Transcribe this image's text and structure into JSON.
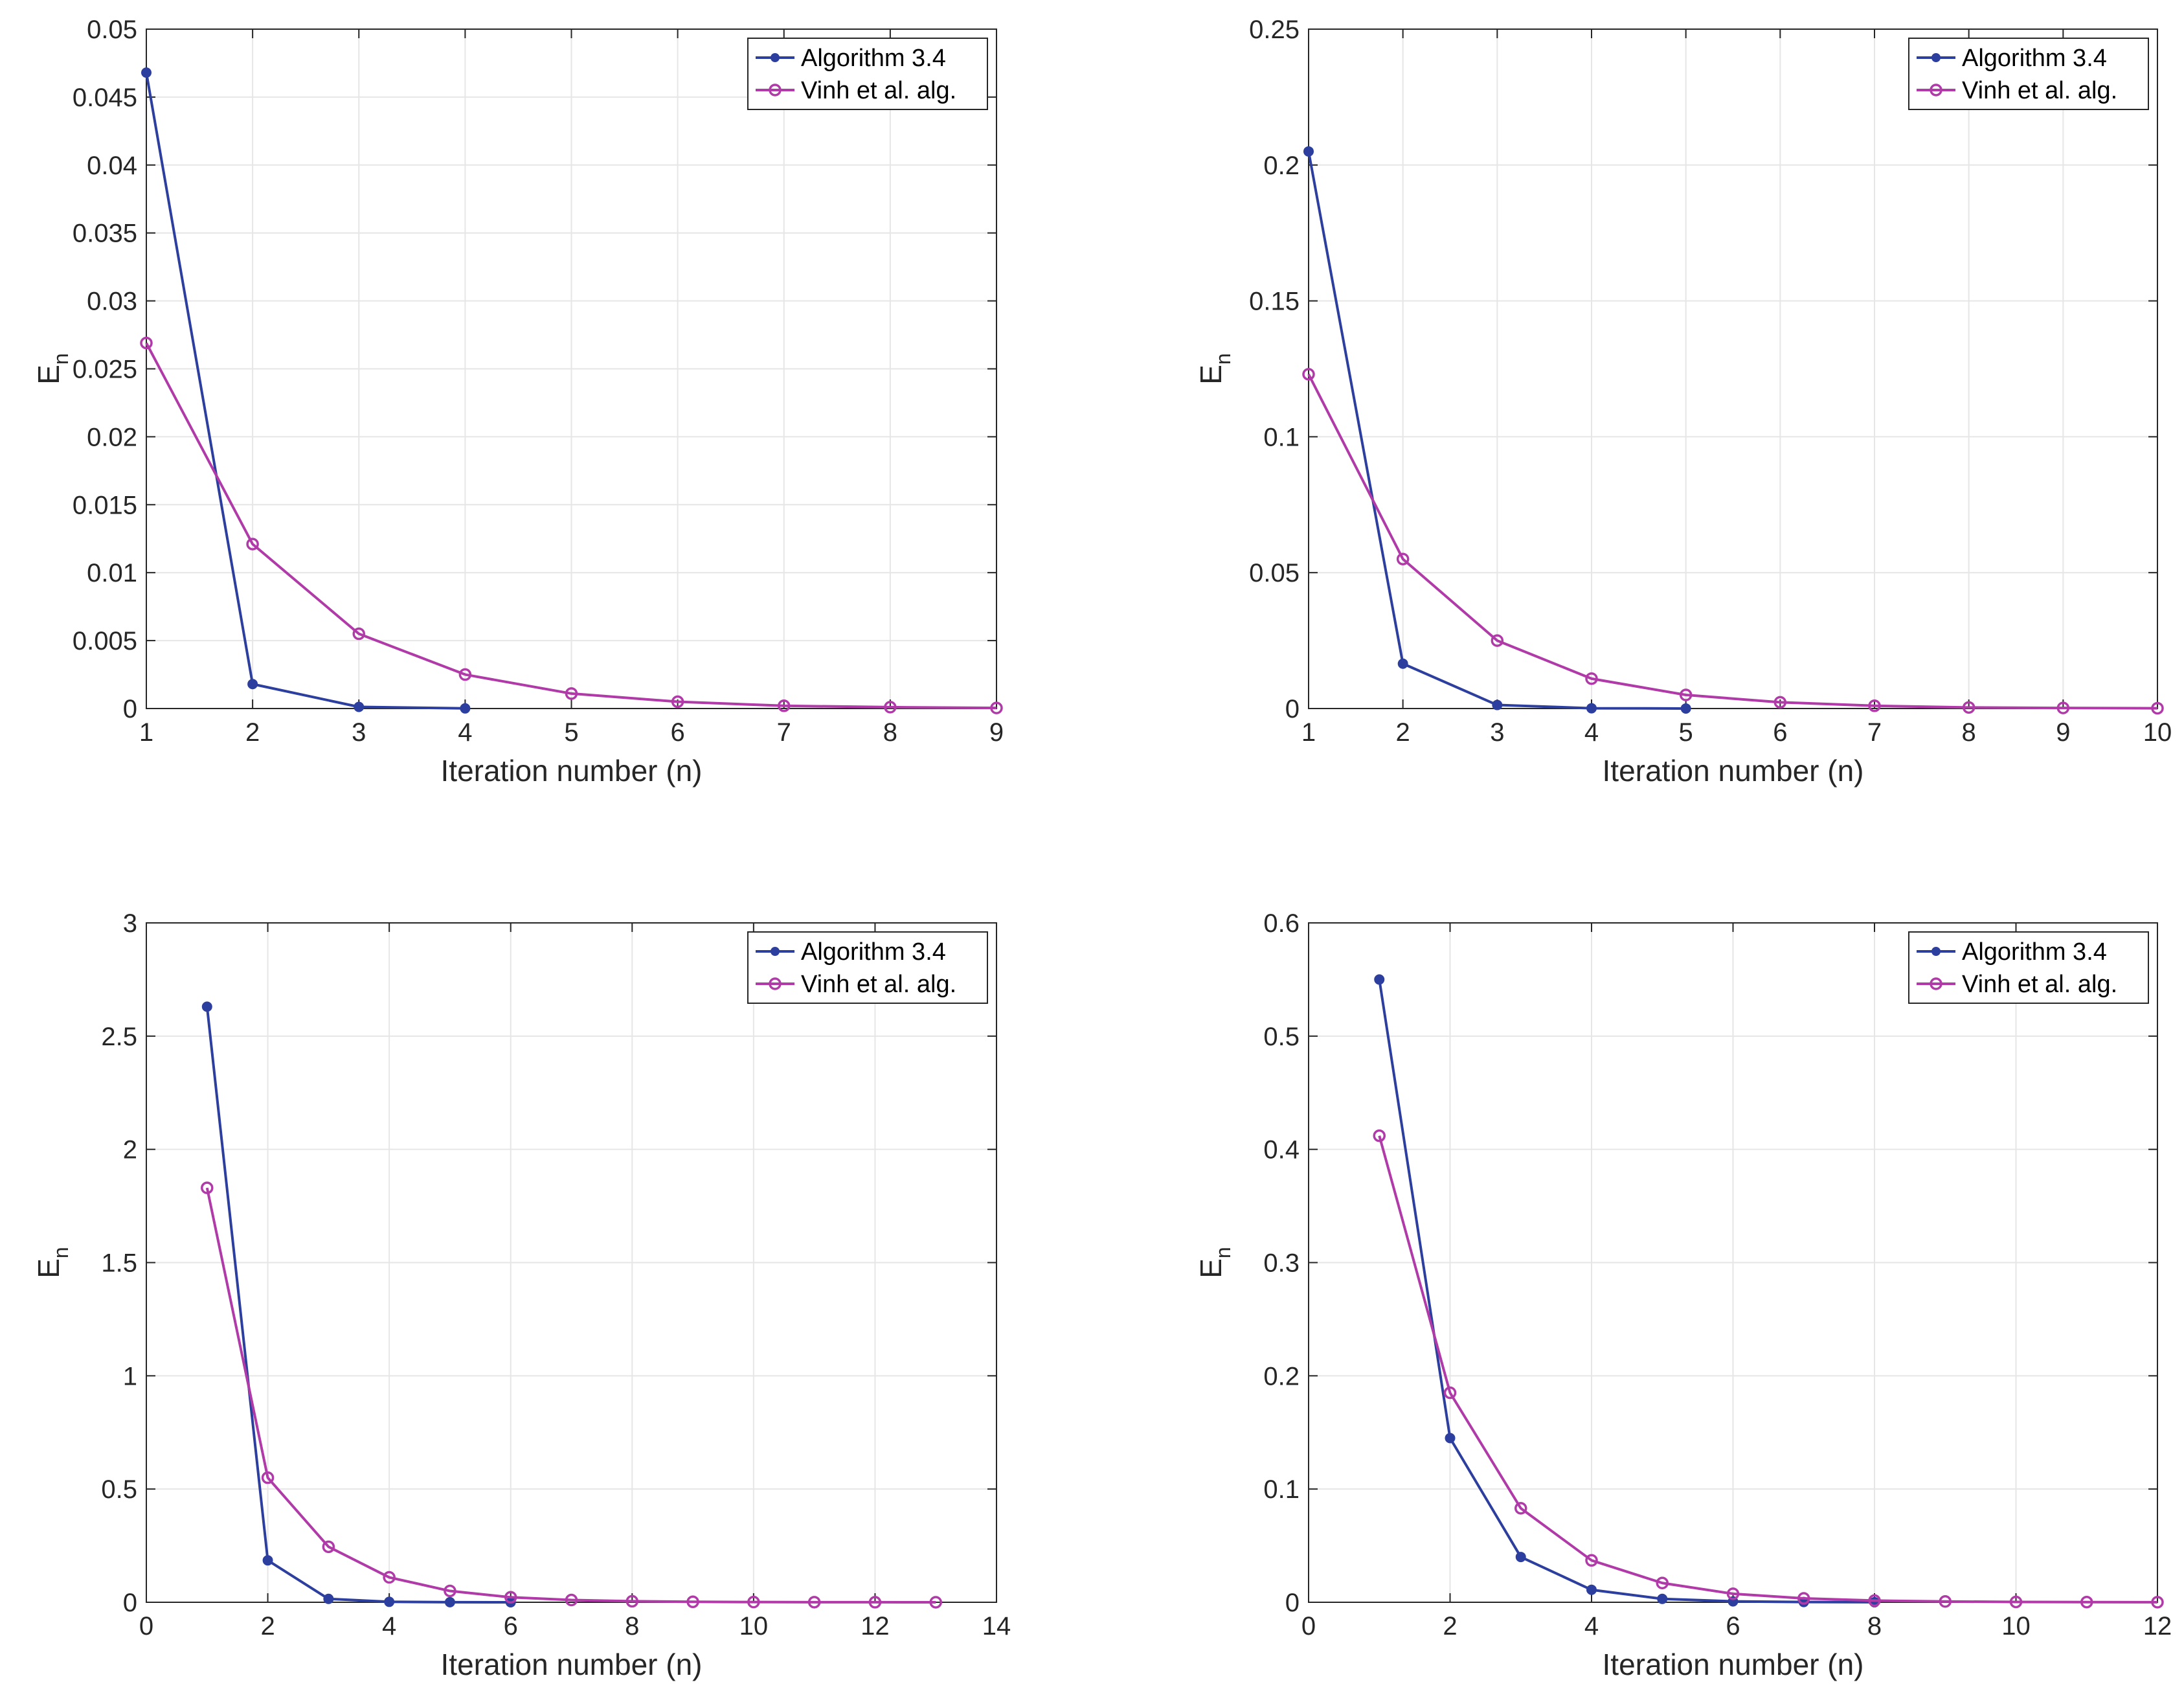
{
  "chart_data": [
    {
      "type": "line",
      "title": "",
      "xlabel": "Iteration number (n)",
      "ylabel_main": "E",
      "ylabel_sub": "n",
      "xlim": [
        1,
        9
      ],
      "ylim": [
        0,
        0.05
      ],
      "xticks": [
        "1",
        "2",
        "3",
        "4",
        "5",
        "6",
        "7",
        "8",
        "9"
      ],
      "yticks": [
        "0",
        "0.005",
        "0.01",
        "0.015",
        "0.02",
        "0.025",
        "0.03",
        "0.035",
        "0.04",
        "0.045",
        "0.05"
      ],
      "grid": true,
      "legend": "top-right",
      "series": [
        {
          "name": "Algorithm 3.4",
          "color": "#2c3e9e",
          "marker": "dot",
          "x": [
            1,
            2,
            3,
            4
          ],
          "y": [
            0.0468,
            0.0018,
            0.00012,
            1e-05
          ]
        },
        {
          "name": "Vinh et al. alg.",
          "color": "#b03aa8",
          "marker": "circle",
          "x": [
            1,
            2,
            3,
            4,
            5,
            6,
            7,
            8,
            9
          ],
          "y": [
            0.0269,
            0.0121,
            0.0055,
            0.0025,
            0.0011,
            0.0005,
            0.0002,
            0.0001,
            4e-05
          ]
        }
      ]
    },
    {
      "type": "line",
      "title": "",
      "xlabel": "Iteration number (n)",
      "ylabel_main": "E",
      "ylabel_sub": "n",
      "xlim": [
        1,
        10
      ],
      "ylim": [
        0,
        0.25
      ],
      "xticks": [
        "1",
        "2",
        "3",
        "4",
        "5",
        "6",
        "7",
        "8",
        "9",
        "10"
      ],
      "yticks": [
        "0",
        "0.05",
        "0.1",
        "0.15",
        "0.2",
        "0.25"
      ],
      "grid": true,
      "legend": "top-right",
      "series": [
        {
          "name": "Algorithm 3.4",
          "color": "#2c3e9e",
          "marker": "dot",
          "x": [
            1,
            2,
            3,
            4,
            5
          ],
          "y": [
            0.205,
            0.0165,
            0.0013,
            0.0001,
            1e-05
          ]
        },
        {
          "name": "Vinh et al. alg.",
          "color": "#b03aa8",
          "marker": "circle",
          "x": [
            1,
            2,
            3,
            4,
            5,
            6,
            7,
            8,
            9,
            10
          ],
          "y": [
            0.123,
            0.055,
            0.025,
            0.011,
            0.005,
            0.0023,
            0.001,
            0.0004,
            0.0002,
            0.0001
          ]
        }
      ]
    },
    {
      "type": "line",
      "title": "",
      "xlabel": "Iteration number (n)",
      "ylabel_main": "E",
      "ylabel_sub": "n",
      "xlim": [
        0,
        14
      ],
      "ylim": [
        0,
        3
      ],
      "xticks": [
        "0",
        "2",
        "4",
        "6",
        "8",
        "10",
        "12",
        "14"
      ],
      "yticks": [
        "0",
        "0.5",
        "1",
        "1.5",
        "2",
        "2.5",
        "3"
      ],
      "grid": true,
      "legend": "top-right",
      "series": [
        {
          "name": "Algorithm 3.4",
          "color": "#2c3e9e",
          "marker": "dot",
          "x": [
            1,
            2,
            3,
            4,
            5,
            6
          ],
          "y": [
            2.63,
            0.185,
            0.015,
            0.002,
            0.0003,
            5e-05
          ]
        },
        {
          "name": "Vinh et al. alg.",
          "color": "#b03aa8",
          "marker": "circle",
          "x": [
            1,
            2,
            3,
            4,
            5,
            6,
            7,
            8,
            9,
            10,
            11,
            12,
            13
          ],
          "y": [
            1.83,
            0.55,
            0.245,
            0.11,
            0.05,
            0.022,
            0.01,
            0.0045,
            0.002,
            0.001,
            0.0005,
            0.0002,
            0.0001
          ]
        }
      ]
    },
    {
      "type": "line",
      "title": "",
      "xlabel": "Iteration number (n)",
      "ylabel_main": "E",
      "ylabel_sub": "n",
      "xlim": [
        0,
        12
      ],
      "ylim": [
        0,
        0.6
      ],
      "xticks": [
        "0",
        "2",
        "4",
        "6",
        "8",
        "10",
        "12"
      ],
      "yticks": [
        "0",
        "0.1",
        "0.2",
        "0.3",
        "0.4",
        "0.5",
        "0.6"
      ],
      "grid": true,
      "legend": "top-right",
      "series": [
        {
          "name": "Algorithm 3.4",
          "color": "#2c3e9e",
          "marker": "dot",
          "x": [
            1,
            2,
            3,
            4,
            5,
            6,
            7,
            8
          ],
          "y": [
            0.55,
            0.145,
            0.04,
            0.011,
            0.003,
            0.0008,
            0.0002,
            5e-05
          ]
        },
        {
          "name": "Vinh et al. alg.",
          "color": "#b03aa8",
          "marker": "circle",
          "x": [
            1,
            2,
            3,
            4,
            5,
            6,
            7,
            8,
            9,
            10,
            11,
            12
          ],
          "y": [
            0.412,
            0.185,
            0.083,
            0.037,
            0.017,
            0.0075,
            0.0034,
            0.0015,
            0.0007,
            0.0003,
            0.00014,
            6e-05
          ]
        }
      ]
    }
  ]
}
